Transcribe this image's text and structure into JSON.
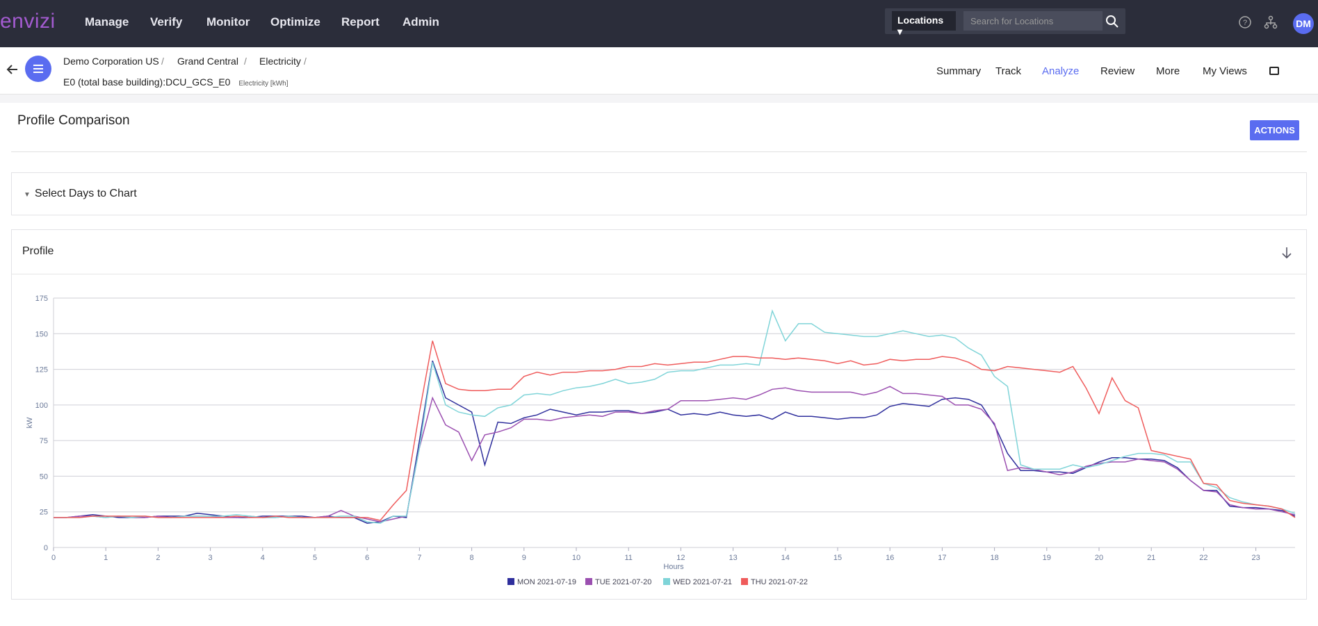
{
  "nav": {
    "logo": "envizi",
    "items": [
      "Manage",
      "Verify",
      "Monitor",
      "Optimize",
      "Report",
      "Admin"
    ],
    "search_scope": "Locations",
    "search_placeholder": "Search for Locations",
    "user_initials": "DM"
  },
  "breadcrumb": {
    "items": [
      "Demo Corporation US",
      "Grand Central",
      "Electricity"
    ],
    "meter": "E0 (total base building):DCU_GCS_E0",
    "unit": "Electricity [kWh]"
  },
  "tabs": {
    "items": [
      "Summary",
      "Track",
      "Analyze",
      "Review",
      "More",
      "My Views"
    ],
    "active": "Analyze"
  },
  "page": {
    "title": "Profile Comparison",
    "action": "ACTIONS",
    "section": "Select Days to Chart",
    "panel_title": "Profile"
  },
  "chart_data": {
    "type": "line",
    "xlabel": "Hours",
    "ylabel": "kW",
    "xlim": [
      0,
      23.75
    ],
    "ylim": [
      0,
      175
    ],
    "xticks": [
      0,
      1,
      2,
      3,
      4,
      5,
      6,
      7,
      8,
      9,
      10,
      11,
      12,
      13,
      14,
      15,
      16,
      17,
      18,
      19,
      20,
      21,
      22,
      23
    ],
    "yticks": [
      0,
      25,
      50,
      75,
      100,
      125,
      150,
      175
    ],
    "grid": true,
    "legend": "bottom",
    "x": [
      0,
      0.25,
      0.5,
      0.75,
      1,
      1.25,
      1.5,
      1.75,
      2,
      2.25,
      2.5,
      2.75,
      3,
      3.25,
      3.5,
      3.75,
      4,
      4.25,
      4.5,
      4.75,
      5,
      5.25,
      5.5,
      5.75,
      6,
      6.25,
      6.5,
      6.75,
      7,
      7.25,
      7.5,
      7.75,
      8,
      8.25,
      8.5,
      8.75,
      9,
      9.25,
      9.5,
      9.75,
      10,
      10.25,
      10.5,
      10.75,
      11,
      11.25,
      11.5,
      11.75,
      12,
      12.25,
      12.5,
      12.75,
      13,
      13.25,
      13.5,
      13.75,
      14,
      14.25,
      14.5,
      14.75,
      15,
      15.25,
      15.5,
      15.75,
      16,
      16.25,
      16.5,
      16.75,
      17,
      17.25,
      17.5,
      17.75,
      18,
      18.25,
      18.5,
      18.75,
      19,
      19.25,
      19.5,
      19.75,
      20,
      20.25,
      20.5,
      20.75,
      21,
      21.25,
      21.5,
      21.75,
      22,
      22.25,
      22.5,
      22.75,
      23,
      23.25,
      23.5,
      23.75
    ],
    "series": [
      {
        "name": "MON 2021-07-19",
        "color": "#2e2e9c",
        "values": [
          21,
          21,
          22,
          23,
          22,
          21,
          21,
          21,
          22,
          22,
          22,
          24,
          23,
          22,
          21,
          21,
          22,
          22,
          22,
          22,
          21,
          22,
          21,
          21,
          17,
          18,
          22,
          21,
          75,
          131,
          105,
          100,
          95,
          58,
          88,
          87,
          91,
          93,
          97,
          95,
          93,
          95,
          95,
          96,
          96,
          94,
          95,
          97,
          93,
          94,
          93,
          95,
          93,
          92,
          93,
          90,
          95,
          92,
          92,
          91,
          90,
          91,
          91,
          93,
          99,
          101,
          100,
          99,
          104,
          105,
          104,
          100,
          86,
          66,
          54,
          54,
          53,
          53,
          52,
          56,
          60,
          63,
          63,
          62,
          62,
          61,
          56,
          47,
          40,
          40,
          29,
          28,
          28,
          27,
          26,
          22
        ]
      },
      {
        "name": "TUE 2021-07-20",
        "color": "#9b4fb0",
        "values": [
          21,
          21,
          22,
          22,
          21,
          22,
          21,
          21,
          22,
          21,
          22,
          22,
          22,
          21,
          21,
          22,
          21,
          21,
          22,
          21,
          21,
          22,
          26,
          22,
          20,
          18,
          20,
          22,
          70,
          105,
          86,
          81,
          61,
          79,
          81,
          84,
          90,
          90,
          89,
          91,
          92,
          93,
          92,
          95,
          95,
          94,
          96,
          97,
          103,
          103,
          103,
          104,
          105,
          104,
          107,
          111,
          112,
          110,
          109,
          109,
          109,
          109,
          107,
          109,
          113,
          108,
          108,
          107,
          106,
          100,
          100,
          97,
          87,
          54,
          56,
          55,
          53,
          51,
          53,
          57,
          59,
          60,
          60,
          62,
          61,
          60,
          55,
          47,
          40,
          39,
          30,
          28,
          27,
          27,
          25,
          23
        ]
      },
      {
        "name": "WED 2021-07-21",
        "color": "#7fd4d8",
        "values": [
          21,
          21,
          21,
          22,
          21,
          22,
          21,
          22,
          21,
          21,
          22,
          22,
          22,
          22,
          23,
          22,
          21,
          21,
          22,
          21,
          21,
          21,
          22,
          22,
          18,
          17,
          22,
          22,
          70,
          130,
          100,
          95,
          93,
          92,
          98,
          100,
          107,
          108,
          107,
          110,
          112,
          113,
          115,
          118,
          115,
          116,
          118,
          123,
          124,
          124,
          126,
          128,
          128,
          129,
          128,
          166,
          145,
          157,
          157,
          151,
          150,
          149,
          148,
          148,
          150,
          152,
          150,
          148,
          149,
          147,
          140,
          135,
          120,
          113,
          58,
          55,
          55,
          55,
          58,
          56,
          58,
          61,
          64,
          66,
          66,
          65,
          60,
          60,
          45,
          42,
          35,
          32,
          30,
          29,
          27,
          24
        ]
      },
      {
        "name": "THU 2021-07-22",
        "color": "#ef5b5b",
        "values": [
          21,
          21,
          21,
          22,
          22,
          22,
          22,
          22,
          21,
          21,
          21,
          21,
          21,
          21,
          22,
          21,
          21,
          22,
          21,
          21,
          21,
          21,
          21,
          21,
          21,
          19,
          30,
          40,
          95,
          145,
          115,
          111,
          110,
          110,
          111,
          111,
          120,
          123,
          121,
          123,
          123,
          124,
          124,
          125,
          127,
          127,
          129,
          128,
          129,
          130,
          130,
          132,
          134,
          134,
          133,
          133,
          132,
          133,
          132,
          131,
          129,
          131,
          128,
          129,
          132,
          131,
          132,
          132,
          134,
          133,
          130,
          125,
          124,
          127,
          126,
          125,
          124,
          123,
          127,
          112,
          94,
          119,
          103,
          98,
          68,
          66,
          64,
          62,
          45,
          44,
          33,
          31,
          30,
          29,
          27,
          21
        ]
      }
    ]
  }
}
